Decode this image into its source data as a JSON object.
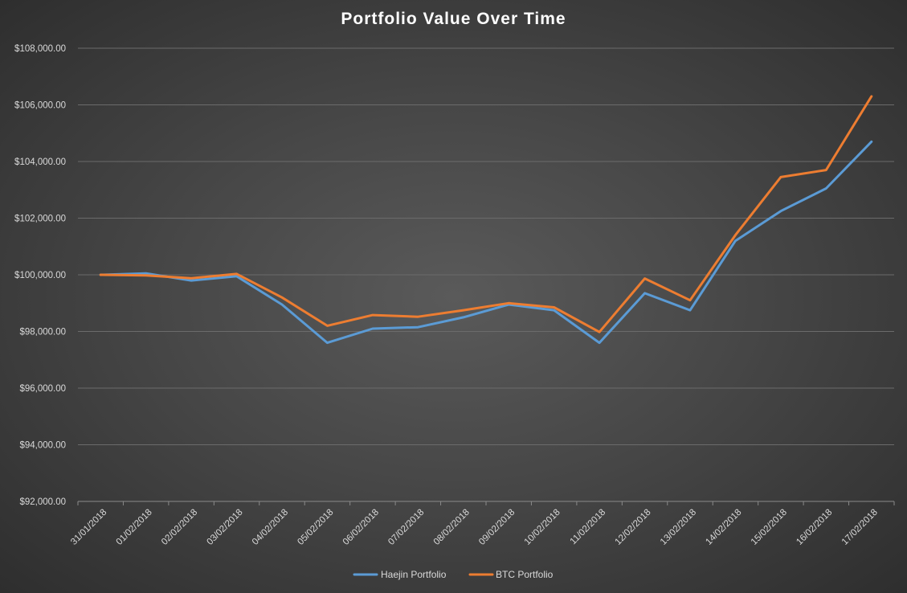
{
  "chart_data": {
    "type": "line",
    "title": "Portfolio Value Over Time",
    "xlabel": "",
    "ylabel": "",
    "categories": [
      "31/01/2018",
      "01/02/2018",
      "02/02/2018",
      "03/02/2018",
      "04/02/2018",
      "05/02/2018",
      "06/02/2018",
      "07/02/2018",
      "08/02/2018",
      "09/02/2018",
      "10/02/2018",
      "11/02/2018",
      "12/02/2018",
      "13/02/2018",
      "14/02/2018",
      "15/02/2018",
      "16/02/2018",
      "17/02/2018"
    ],
    "y_ticks": [
      "$92,000.00",
      "$94,000.00",
      "$96,000.00",
      "$98,000.00",
      "$100,000.00",
      "$102,000.00",
      "$104,000.00",
      "$106,000.00",
      "$108,000.00"
    ],
    "ylim": [
      92000,
      108000
    ],
    "ytick_step": 2000,
    "grid": true,
    "legend_position": "bottom",
    "series": [
      {
        "name": "Haejin Portfolio",
        "color": "#5b9bd5",
        "values": [
          100000,
          100050,
          99800,
          99950,
          98950,
          97600,
          98100,
          98150,
          98500,
          98950,
          98750,
          97600,
          99350,
          98750,
          101200,
          102250,
          103050,
          104700
        ]
      },
      {
        "name": "BTC Portfolio",
        "color": "#ed7d31",
        "values": [
          100000,
          99980,
          99880,
          100030,
          99200,
          98200,
          98580,
          98520,
          98750,
          99000,
          98850,
          97980,
          99870,
          99100,
          101400,
          103450,
          103700,
          106300
        ]
      }
    ]
  }
}
